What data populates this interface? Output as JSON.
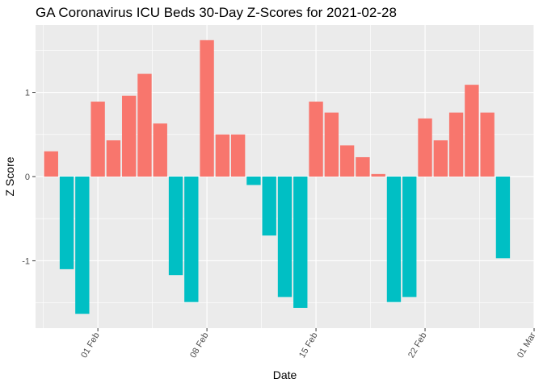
{
  "chart_data": {
    "type": "bar",
    "title": "GA Coronavirus ICU Beds 30-Day Z-Scores for 2021-02-28",
    "xlabel": "Date",
    "ylabel": "Z Score",
    "ylim": [
      -1.8,
      1.8
    ],
    "y_ticks": [
      -1,
      0,
      1
    ],
    "y_tick_labels": [
      "-1",
      "0",
      "1"
    ],
    "x_ticks": [
      "2021-02-01",
      "2021-02-08",
      "2021-02-15",
      "2021-02-22",
      "2021-03-01"
    ],
    "x_tick_labels": [
      "01 Feb",
      "08 Feb",
      "15 Feb",
      "22 Feb",
      "01 Mar"
    ],
    "xlim": [
      "2021-01-28",
      "2021-03-01"
    ],
    "grid": true,
    "legend": "none",
    "colors": {
      "positive": "#F8766D",
      "negative": "#00BFC4",
      "panel": "#EBEBEB",
      "grid": "#FFFFFF"
    },
    "x": [
      "2021-01-29",
      "2021-01-30",
      "2021-01-31",
      "2021-02-01",
      "2021-02-02",
      "2021-02-03",
      "2021-02-04",
      "2021-02-05",
      "2021-02-06",
      "2021-02-07",
      "2021-02-08",
      "2021-02-09",
      "2021-02-10",
      "2021-02-11",
      "2021-02-12",
      "2021-02-13",
      "2021-02-14",
      "2021-02-15",
      "2021-02-16",
      "2021-02-17",
      "2021-02-18",
      "2021-02-19",
      "2021-02-20",
      "2021-02-21",
      "2021-02-22",
      "2021-02-23",
      "2021-02-24",
      "2021-02-25",
      "2021-02-26",
      "2021-02-27",
      "2021-02-28"
    ],
    "values": [
      0.3,
      -1.1,
      -1.63,
      0.89,
      0.43,
      0.96,
      1.22,
      0.63,
      -1.17,
      -1.49,
      1.62,
      0.5,
      0.5,
      -0.1,
      -0.7,
      -1.43,
      -1.56,
      0.89,
      0.76,
      0.37,
      0.23,
      0.03,
      -1.49,
      -1.43,
      0.69,
      0.43,
      0.76,
      1.09,
      0.76,
      -0.97,
      null
    ]
  }
}
